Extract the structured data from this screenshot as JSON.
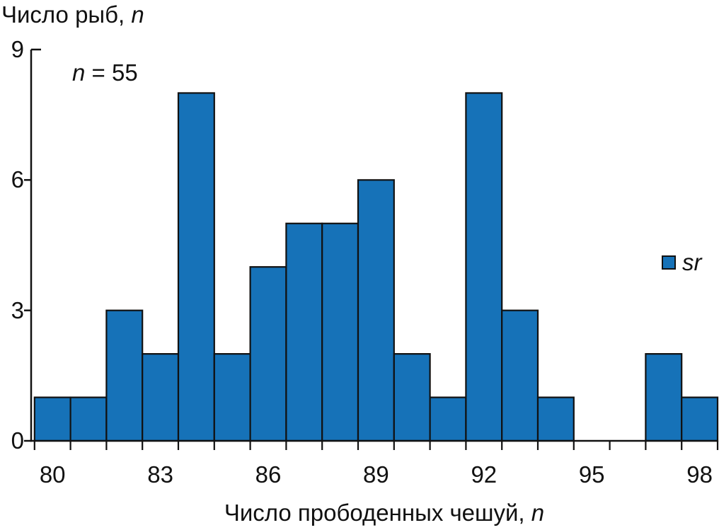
{
  "chart_data": {
    "type": "bar",
    "subtype": "histogram",
    "title_parts": {
      "text": "Число рыб, ",
      "italic": "n"
    },
    "xlabel_parts": {
      "text": "Число прободенных чешуй, ",
      "italic": "n"
    },
    "annotation_parts": {
      "italic": "n",
      "text": " = 55"
    },
    "sample_size": 55,
    "legend": {
      "label": "sr",
      "position": "right"
    },
    "categories": [
      80,
      81,
      82,
      83,
      84,
      85,
      86,
      87,
      88,
      89,
      90,
      91,
      92,
      93,
      94,
      95,
      96,
      97,
      98
    ],
    "values": [
      1,
      1,
      3,
      2,
      8,
      2,
      4,
      5,
      5,
      6,
      2,
      1,
      8,
      3,
      1,
      0,
      0,
      2,
      1
    ],
    "x_tick_labels": [
      "80",
      "83",
      "86",
      "89",
      "92",
      "95",
      "98"
    ],
    "x_tick_values": [
      80,
      83,
      86,
      89,
      92,
      95,
      98
    ],
    "y_tick_labels": [
      "0",
      "3",
      "6",
      "9"
    ],
    "y_tick_values": [
      0,
      3,
      6,
      9
    ],
    "ylim": [
      0,
      9
    ],
    "grid": "off",
    "colors": {
      "bar_fill": "#1672B8",
      "bar_edge": "#111111",
      "axis": "#111111",
      "text": "#111111",
      "background": "#FFFFFF"
    }
  }
}
